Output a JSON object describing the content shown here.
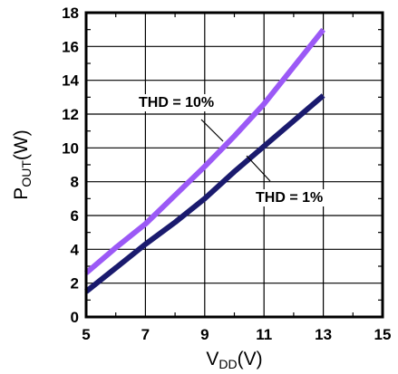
{
  "chart_data": {
    "type": "line",
    "xlabel": {
      "main": "V",
      "sub": "DD",
      "unit": "(V)"
    },
    "ylabel": {
      "main": "P",
      "sub": "OUT",
      "unit": "(W)"
    },
    "xlim": [
      5,
      15
    ],
    "ylim": [
      0,
      18
    ],
    "x_ticks": [
      "5",
      "7",
      "9",
      "11",
      "13",
      "15"
    ],
    "y_ticks": [
      "0",
      "2",
      "4",
      "6",
      "8",
      "10",
      "12",
      "14",
      "16",
      "18"
    ],
    "grid": true,
    "series": [
      {
        "name": "THD = 10%",
        "color": "#9b59f6",
        "x": [
          5,
          6,
          7,
          8,
          9,
          10,
          11,
          12,
          13
        ],
        "y": [
          2.6,
          4.1,
          5.5,
          7.2,
          8.9,
          10.7,
          12.6,
          14.8,
          17.0
        ]
      },
      {
        "name": "THD = 1%",
        "color": "#1a1a6e",
        "x": [
          5,
          6,
          7,
          8,
          9,
          10,
          11,
          12,
          13
        ],
        "y": [
          1.5,
          2.9,
          4.3,
          5.6,
          7.0,
          8.6,
          10.1,
          11.6,
          13.1
        ]
      }
    ]
  }
}
